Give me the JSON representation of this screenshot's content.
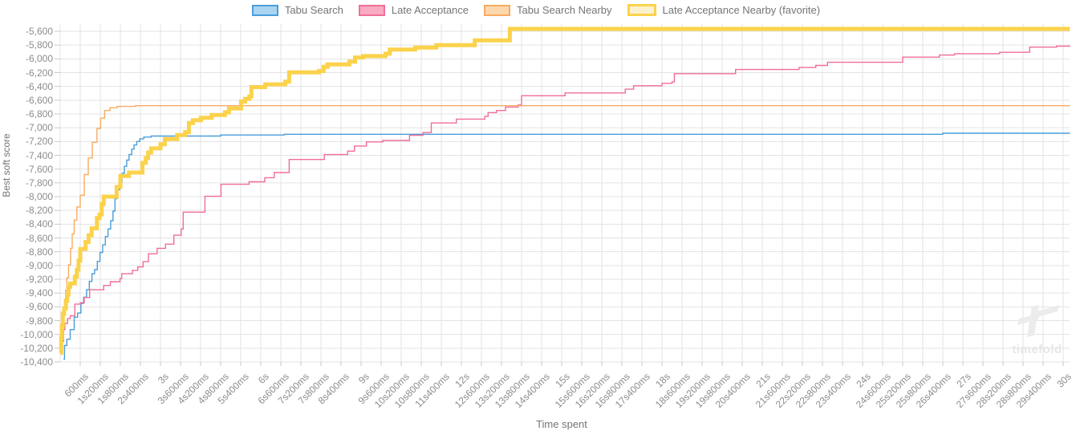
{
  "watermark": {
    "text": "timefold"
  },
  "chart_data": {
    "type": "line",
    "subtype": "step-after",
    "title": "",
    "xlabel": "Time spent",
    "ylabel": "Best soft score",
    "x_range_seconds": [
      0,
      30
    ],
    "y_range": [
      -10400,
      -5600
    ],
    "y_tick_step": 200,
    "x_tick_step_seconds": 0.6,
    "grid": true,
    "legend_position": "top",
    "x_tick_labels": [
      "600ms",
      "1s200ms",
      "1s800ms",
      "2s400ms",
      "3s",
      "3s600ms",
      "4s200ms",
      "4s800ms",
      "5s400ms",
      "6s",
      "6s600ms",
      "7s200ms",
      "7s800ms",
      "8s400ms",
      "9s",
      "9s600ms",
      "10s200ms",
      "10s800ms",
      "11s400ms",
      "12s",
      "12s600ms",
      "13s200ms",
      "13s800ms",
      "14s400ms",
      "15s",
      "15s600ms",
      "16s200ms",
      "16s800ms",
      "17s400ms",
      "18s",
      "18s600ms",
      "19s200ms",
      "19s800ms",
      "20s400ms",
      "21s",
      "21s600ms",
      "22s200ms",
      "22s800ms",
      "23s400ms",
      "24s",
      "24s600ms",
      "25s200ms",
      "25s800ms",
      "26s400ms",
      "27s",
      "27s600ms",
      "28s200ms",
      "28s800ms",
      "29s400ms",
      "30s"
    ],
    "y_tick_labels": [
      "-5,600",
      "-5,800",
      "-6,000",
      "-6,200",
      "-6,400",
      "-6,600",
      "-6,800",
      "-7,000",
      "-7,200",
      "-7,400",
      "-7,600",
      "-7,800",
      "-8,000",
      "-8,200",
      "-8,400",
      "-8,600",
      "-8,800",
      "-9,000",
      "-9,200",
      "-9,400",
      "-9,600",
      "-9,800",
      "-10,000",
      "-10,200",
      "-10,400"
    ],
    "series": [
      {
        "name": "Tabu Search",
        "color": "#4a9edb",
        "legend_fill": "#abd4f0",
        "line_width": 1.4,
        "favorite": false,
        "final_score": -7080,
        "points": [
          [
            0.1,
            -10360
          ],
          [
            0.13,
            -10160
          ],
          [
            0.2,
            -10070
          ],
          [
            0.3,
            -9930
          ],
          [
            0.42,
            -9750
          ],
          [
            0.52,
            -9690
          ],
          [
            0.62,
            -9550
          ],
          [
            0.7,
            -9460
          ],
          [
            0.79,
            -9350
          ],
          [
            0.87,
            -9230
          ],
          [
            0.95,
            -9120
          ],
          [
            1.03,
            -9060
          ],
          [
            1.11,
            -8940
          ],
          [
            1.19,
            -8810
          ],
          [
            1.27,
            -8700
          ],
          [
            1.35,
            -8580
          ],
          [
            1.43,
            -8470
          ],
          [
            1.51,
            -8350
          ],
          [
            1.58,
            -8210
          ],
          [
            1.64,
            -8030
          ],
          [
            1.7,
            -7900
          ],
          [
            1.78,
            -7790
          ],
          [
            1.85,
            -7660
          ],
          [
            1.92,
            -7560
          ],
          [
            1.99,
            -7470
          ],
          [
            2.06,
            -7390
          ],
          [
            2.14,
            -7310
          ],
          [
            2.21,
            -7250
          ],
          [
            2.29,
            -7200
          ],
          [
            2.38,
            -7160
          ],
          [
            2.5,
            -7135
          ],
          [
            2.72,
            -7120
          ],
          [
            4.8,
            -7105
          ],
          [
            6.7,
            -7095
          ],
          [
            26.4,
            -7080
          ],
          [
            30.2,
            -7080
          ]
        ]
      },
      {
        "name": "Late Acceptance",
        "color": "#f06e97",
        "legend_fill": "#f8abc2",
        "line_width": 1.4,
        "favorite": false,
        "final_score": -5810,
        "points": [
          [
            0.08,
            -10100
          ],
          [
            0.1,
            -9930
          ],
          [
            0.14,
            -9840
          ],
          [
            0.22,
            -9770
          ],
          [
            0.3,
            -9730
          ],
          [
            0.44,
            -9560
          ],
          [
            0.6,
            -9540
          ],
          [
            0.72,
            -9465
          ],
          [
            0.88,
            -9350
          ],
          [
            1.3,
            -9290
          ],
          [
            1.5,
            -9235
          ],
          [
            1.79,
            -9190
          ],
          [
            1.84,
            -9120
          ],
          [
            2.16,
            -9070
          ],
          [
            2.32,
            -9020
          ],
          [
            2.48,
            -8945
          ],
          [
            2.64,
            -8830
          ],
          [
            2.9,
            -8750
          ],
          [
            3.15,
            -8690
          ],
          [
            3.4,
            -8560
          ],
          [
            3.62,
            -8470
          ],
          [
            3.68,
            -8225
          ],
          [
            4.33,
            -7995
          ],
          [
            4.81,
            -7820
          ],
          [
            5.65,
            -7785
          ],
          [
            6.12,
            -7725
          ],
          [
            6.4,
            -7650
          ],
          [
            6.85,
            -7460
          ],
          [
            7.9,
            -7390
          ],
          [
            8.6,
            -7340
          ],
          [
            8.8,
            -7265
          ],
          [
            9.16,
            -7205
          ],
          [
            9.65,
            -7185
          ],
          [
            10.45,
            -7110
          ],
          [
            10.85,
            -7070
          ],
          [
            11.1,
            -6930
          ],
          [
            11.85,
            -6875
          ],
          [
            12.7,
            -6835
          ],
          [
            12.8,
            -6780
          ],
          [
            13.05,
            -6750
          ],
          [
            13.32,
            -6700
          ],
          [
            13.7,
            -6670
          ],
          [
            13.8,
            -6535
          ],
          [
            15.1,
            -6495
          ],
          [
            16.9,
            -6440
          ],
          [
            17.15,
            -6390
          ],
          [
            18.0,
            -6355
          ],
          [
            18.3,
            -6335
          ],
          [
            18.37,
            -6215
          ],
          [
            20.2,
            -6155
          ],
          [
            22.1,
            -6125
          ],
          [
            22.6,
            -6095
          ],
          [
            22.95,
            -6050
          ],
          [
            25.2,
            -5975
          ],
          [
            26.3,
            -5945
          ],
          [
            26.75,
            -5925
          ],
          [
            28.1,
            -5905
          ],
          [
            29.0,
            -5830
          ],
          [
            29.8,
            -5815
          ],
          [
            30.2,
            -5810
          ]
        ]
      },
      {
        "name": "Tabu Search Nearby",
        "color": "#f8ab62",
        "legend_fill": "#fdd8ad",
        "line_width": 1.4,
        "favorite": false,
        "final_score": -6680,
        "points": [
          [
            0.02,
            -10150
          ],
          [
            0.04,
            -9950
          ],
          [
            0.07,
            -9780
          ],
          [
            0.1,
            -9640
          ],
          [
            0.13,
            -9500
          ],
          [
            0.16,
            -9360
          ],
          [
            0.2,
            -9180
          ],
          [
            0.25,
            -8990
          ],
          [
            0.31,
            -8750
          ],
          [
            0.36,
            -8540
          ],
          [
            0.42,
            -8340
          ],
          [
            0.5,
            -8150
          ],
          [
            0.6,
            -7980
          ],
          [
            0.72,
            -7680
          ],
          [
            0.84,
            -7440
          ],
          [
            0.96,
            -7210
          ],
          [
            1.1,
            -7010
          ],
          [
            1.21,
            -6860
          ],
          [
            1.33,
            -6750
          ],
          [
            1.49,
            -6710
          ],
          [
            1.7,
            -6690
          ],
          [
            2.25,
            -6680
          ],
          [
            30.2,
            -6680
          ]
        ]
      },
      {
        "name": "Late Acceptance Nearby (favorite)",
        "color": "#fbd24b",
        "legend_fill": "#fdf2cd",
        "line_width": 5,
        "favorite": true,
        "final_score": -5565,
        "points": [
          [
            0.01,
            -10270
          ],
          [
            0.03,
            -10050
          ],
          [
            0.05,
            -9870
          ],
          [
            0.08,
            -9700
          ],
          [
            0.12,
            -9620
          ],
          [
            0.17,
            -9510
          ],
          [
            0.21,
            -9420
          ],
          [
            0.25,
            -9310
          ],
          [
            0.3,
            -9260
          ],
          [
            0.44,
            -9160
          ],
          [
            0.5,
            -9060
          ],
          [
            0.55,
            -8930
          ],
          [
            0.6,
            -8760
          ],
          [
            0.76,
            -8660
          ],
          [
            0.85,
            -8560
          ],
          [
            0.94,
            -8460
          ],
          [
            1.1,
            -8310
          ],
          [
            1.18,
            -8260
          ],
          [
            1.24,
            -8110
          ],
          [
            1.3,
            -8000
          ],
          [
            1.69,
            -7860
          ],
          [
            1.8,
            -7700
          ],
          [
            2.06,
            -7650
          ],
          [
            2.46,
            -7510
          ],
          [
            2.56,
            -7440
          ],
          [
            2.63,
            -7360
          ],
          [
            2.72,
            -7300
          ],
          [
            3.0,
            -7240
          ],
          [
            3.13,
            -7165
          ],
          [
            3.5,
            -7105
          ],
          [
            3.74,
            -7065
          ],
          [
            3.85,
            -6930
          ],
          [
            3.97,
            -6890
          ],
          [
            4.21,
            -6855
          ],
          [
            4.53,
            -6815
          ],
          [
            4.93,
            -6775
          ],
          [
            5.05,
            -6720
          ],
          [
            5.41,
            -6620
          ],
          [
            5.53,
            -6580
          ],
          [
            5.66,
            -6545
          ],
          [
            5.72,
            -6410
          ],
          [
            6.13,
            -6370
          ],
          [
            6.73,
            -6330
          ],
          [
            6.85,
            -6195
          ],
          [
            7.74,
            -6175
          ],
          [
            7.88,
            -6115
          ],
          [
            8.0,
            -6080
          ],
          [
            8.65,
            -6040
          ],
          [
            8.82,
            -5980
          ],
          [
            9.06,
            -5960
          ],
          [
            9.73,
            -5925
          ],
          [
            9.86,
            -5865
          ],
          [
            10.62,
            -5835
          ],
          [
            11.25,
            -5800
          ],
          [
            12.4,
            -5730
          ],
          [
            13.45,
            -5565
          ],
          [
            30.2,
            -5565
          ]
        ]
      }
    ],
    "style": {
      "grid_color": "#e3e3e3",
      "tick_color": "#c9c9c9",
      "tick_label_color": "#8c8c8c",
      "axis_title_color": "#757575",
      "legend_text_color": "#757575",
      "watermark_color": "#ececec",
      "background": "#ffffff"
    }
  }
}
